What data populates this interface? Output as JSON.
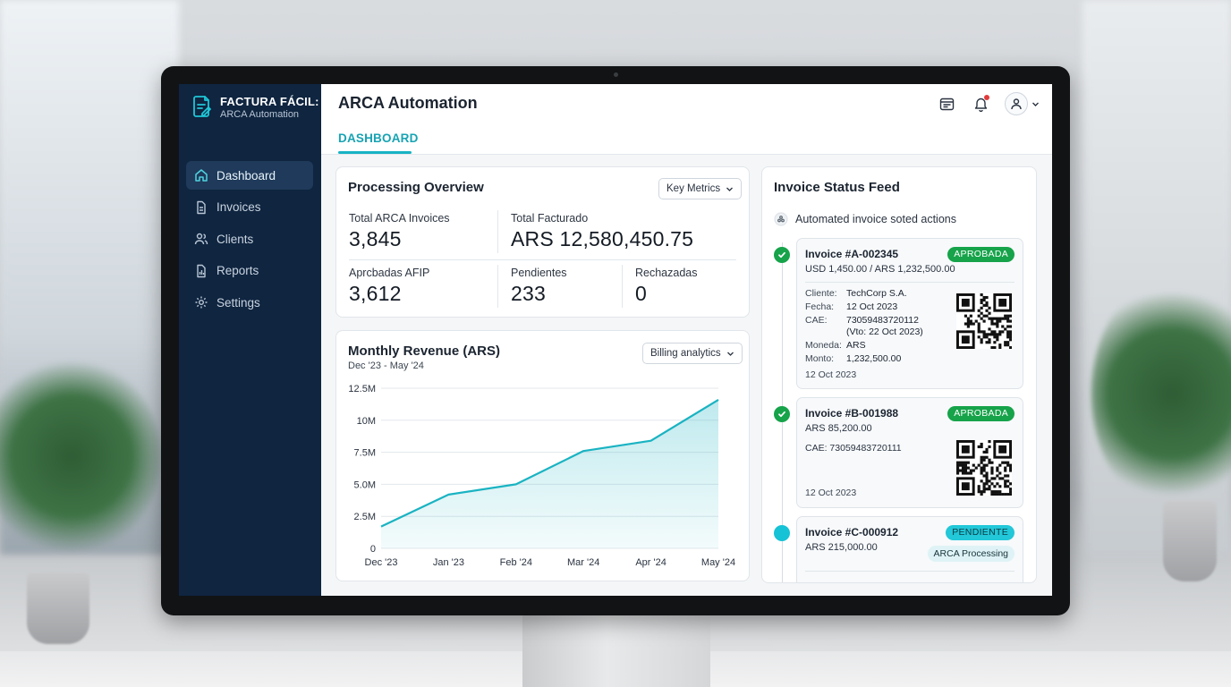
{
  "brand": {
    "name": "FACTURA FÁCIL:",
    "subtitle": "ARCA Automation"
  },
  "sidebar": {
    "items": [
      {
        "label": "Dashboard",
        "icon": "home-icon",
        "active": true
      },
      {
        "label": "Invoices",
        "icon": "document-icon",
        "active": false
      },
      {
        "label": "Clients",
        "icon": "users-icon",
        "active": false
      },
      {
        "label": "Reports",
        "icon": "bar-chart-icon",
        "active": false
      },
      {
        "label": "Settings",
        "icon": "gear-icon",
        "active": false
      }
    ]
  },
  "header": {
    "title": "ARCA Automation",
    "tab": "DASHBOARD",
    "icons": [
      "calendar-icon",
      "bell-icon",
      "user-icon",
      "chevron-down-icon"
    ]
  },
  "overview": {
    "title": "Processing Overview",
    "dropdown": "Key Metrics",
    "total_invoices_label": "Total ARCA Invoices",
    "total_invoices_value": "3,845",
    "total_billed_label": "Total Facturado",
    "total_billed_value": "ARS 12,580,450.75",
    "approved_label": "Aprcbadas AFIP",
    "approved_value": "3,612",
    "pending_label": "Pendientes",
    "pending_value": "233",
    "rejected_label": "Rechazadas",
    "rejected_value": "0"
  },
  "revenue": {
    "title": "Monthly Revenue (ARS)",
    "subtitle": "Dec '23 - May '24",
    "dropdown": "Billing analytics"
  },
  "chart_data": {
    "type": "area",
    "title": "Monthly Revenue (ARS)",
    "categories": [
      "Dec '23",
      "Jan '23",
      "Feb '24",
      "Mar '24",
      "Apr '24",
      "May '24"
    ],
    "values": [
      1700000,
      4200000,
      5000000,
      7600000,
      8400000,
      11600000
    ],
    "ylim": [
      0,
      12500000
    ],
    "yticks": [
      0,
      2500000,
      5000000,
      7500000,
      10000000,
      12500000
    ],
    "ytick_labels": [
      "0",
      "2.5M",
      "5.0M",
      "7.5M",
      "10M",
      "12.5M"
    ],
    "grid": true,
    "color": "#1ab3c2"
  },
  "feed": {
    "title": "Invoice Status Feed",
    "subtitle": "Automated invoice soted actions",
    "invoices": [
      {
        "id": "Invoice #A-002345",
        "amount": "USD 1,450.00 / ARS 1,232,500.00",
        "status": "APROBADA",
        "cliente_label": "Cliente:",
        "cliente": "TechCorp S.A.",
        "fecha_label": "Fecha:",
        "fecha": "12 Oct 2023",
        "cae_label": "CAE:",
        "cae": "73059483720112",
        "cae_vto": "(Vto: 22 Oct 2023)",
        "moneda_label": "Moneda:",
        "moneda": "ARS",
        "monto_label": "Monto:",
        "monto": "1,232,500.00",
        "date": "12 Oct 2023"
      },
      {
        "id": "Invoice #B-001988",
        "amount": "ARS 85,200.00",
        "status": "APROBADA",
        "cae_line": "CAE: 73059483720111",
        "date": "12 Oct 2023"
      },
      {
        "id": "Invoice #C-000912",
        "amount": "ARS 215,000.00",
        "status": "PENDIENTE",
        "sub_status": "ARCA Processing"
      }
    ]
  }
}
